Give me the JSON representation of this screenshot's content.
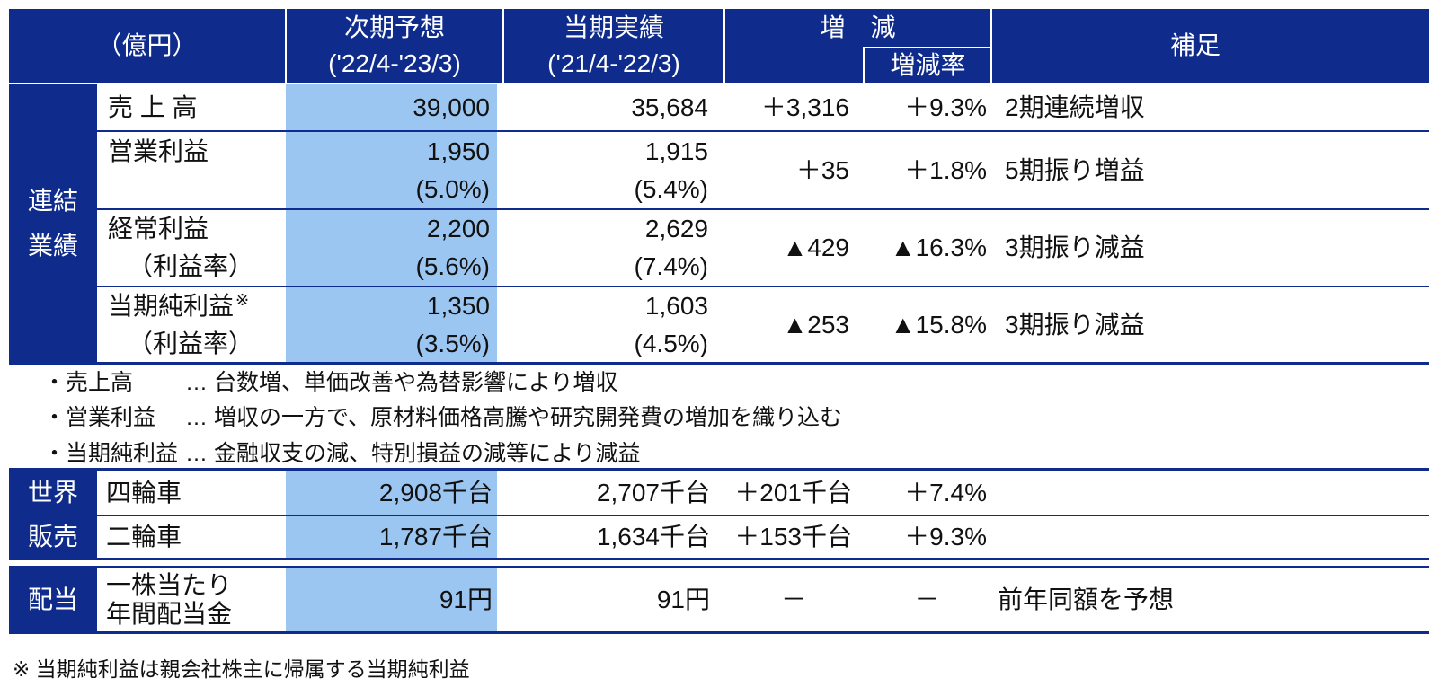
{
  "header": {
    "unit": "（億円）",
    "forecast": {
      "title": "次期予想",
      "period": "('22/4-'23/3)"
    },
    "actual": {
      "title": "当期実績",
      "period": "('21/4-'22/3)"
    },
    "change": {
      "title": "増　減",
      "rate_title": "増減率"
    },
    "notes_title": "補足"
  },
  "consolidated": {
    "section_label": [
      "連結",
      "業績"
    ],
    "rows": [
      {
        "label": "売 上 高",
        "forecast": "39,000",
        "actual": "35,684",
        "change": "＋3,316",
        "change_rate": "＋9.3%",
        "note": "2期連続増収"
      },
      {
        "label": "営業利益",
        "forecast": "1,950",
        "forecast_ratio": "(5.0%)",
        "actual": "1,915",
        "actual_ratio": "(5.4%)",
        "change": "＋35",
        "change_rate": "＋1.8%",
        "note": "5期振り増益"
      },
      {
        "label": "経常利益",
        "sub_label": "（利益率）",
        "forecast": "2,200",
        "forecast_ratio": "(5.6%)",
        "actual": "2,629",
        "actual_ratio": "(7.4%)",
        "change": "▲429",
        "change_rate": "▲16.3%",
        "note": "3期振り減益"
      },
      {
        "label": "当期純利益",
        "label_mark": "※",
        "sub_label": "（利益率）",
        "forecast": "1,350",
        "forecast_ratio": "(3.5%)",
        "actual": "1,603",
        "actual_ratio": "(4.5%)",
        "change": "▲253",
        "change_rate": "▲15.8%",
        "note": "3期振り減益"
      }
    ]
  },
  "remarks": [
    {
      "label": "・売上高",
      "text": "… 台数増、単価改善や為替影響により増収"
    },
    {
      "label": "・営業利益",
      "text": "… 増収の一方で、原材料価格高騰や研究開発費の増加を織り込む"
    },
    {
      "label": "・当期純利益",
      "text": "… 金融収支の減、特別損益の減等により減益"
    }
  ],
  "global_sales": {
    "section_label": [
      "世界",
      "販売"
    ],
    "rows": [
      {
        "label": "四輪車",
        "forecast": "2,908千台",
        "actual": "2,707千台",
        "change": "＋201千台",
        "change_rate": "＋7.4%"
      },
      {
        "label": "二輪車",
        "forecast": "1,787千台",
        "actual": "1,634千台",
        "change": "＋153千台",
        "change_rate": "＋9.3%"
      }
    ]
  },
  "dividend": {
    "section_label": "配当",
    "label_lines": [
      "一株当たり",
      "年間配当金"
    ],
    "forecast": "91円",
    "actual": "91円",
    "change": "－",
    "change_rate": "－",
    "note": "前年同額を予想"
  },
  "footnote": "※ 当期純利益は親会社株主に帰属する当期純利益",
  "colors": {
    "navy": "#0F2C8C",
    "forecast_highlight": "#9CC6F2"
  }
}
